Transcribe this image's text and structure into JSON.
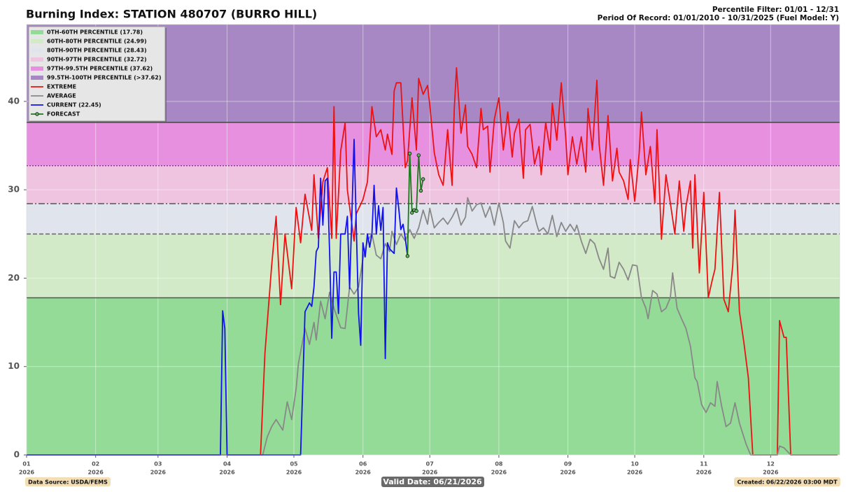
{
  "chart_data": {
    "type": "line",
    "title": "Burning Index: STATION 480707 (BURRO HILL)",
    "subtitle_lines": [
      "Percentile Filter: 01/01 - 12/31",
      "Period Of Record: 01/01/2010 - 10/31/2025 (Fuel Model: Y)"
    ],
    "footer": {
      "source": "Data Source: USDA/FEMS",
      "valid": "Valid Date: 06/21/2026",
      "created": "Created: 06/22/2026 03:00 MDT"
    },
    "xlim": [
      0,
      365
    ],
    "xticks": [
      {
        "value": 0,
        "label": "01"
      },
      {
        "value": 31,
        "label": "02"
      },
      {
        "value": 59,
        "label": "03"
      },
      {
        "value": 90,
        "label": "04"
      },
      {
        "value": 120,
        "label": "05"
      },
      {
        "value": 151,
        "label": "06"
      },
      {
        "value": 181,
        "label": "07"
      },
      {
        "value": 212,
        "label": "08"
      },
      {
        "value": 243,
        "label": "09"
      },
      {
        "value": 273,
        "label": "10"
      },
      {
        "value": 304,
        "label": "11"
      },
      {
        "value": 334,
        "label": "12"
      }
    ],
    "x_sublabel": "2026",
    "ylim": [
      0,
      48.7
    ],
    "yticks": [
      0,
      10,
      20,
      30,
      40
    ],
    "grid": true,
    "legend": "upper-left",
    "bands": [
      {
        "name": "0TH-60TH PERCENTILE (17.78)",
        "color": "#95db98",
        "upper": 17.78,
        "line_style": "solid",
        "line_color": "#555555"
      },
      {
        "name": "60TH-80TH PERCENTILE (24.99)",
        "color": "#d3eac8",
        "upper": 24.99,
        "line_style": "dashed",
        "line_color": "#666666"
      },
      {
        "name": "80TH-90TH PERCENTILE (28.43)",
        "color": "#e0e4ec",
        "upper": 28.43,
        "line_style": "dashdot",
        "line_color": "#555555"
      },
      {
        "name": "90TH-97TH PERCENTILE (32.72)",
        "color": "#eec4e0",
        "upper": 32.72,
        "line_style": "dotted",
        "line_color": "#8a3d8a"
      },
      {
        "name": "97TH-99.5TH PERCENTILE (37.62)",
        "color": "#e890e0",
        "upper": 37.62,
        "line_style": "solid",
        "line_color": "#444444"
      },
      {
        "name": "99.5TH-100TH PERCENTILE (>37.62)",
        "color": "#a888c4",
        "upper": 48.7,
        "line_style": "none",
        "line_color": "#444444"
      }
    ],
    "series": [
      {
        "name": "EXTREME",
        "color": "#ee1111",
        "marker": false,
        "x": [
          0,
          105,
          107,
          110,
          112,
          114,
          116,
          119,
          121,
          123,
          125,
          128,
          129,
          131,
          133,
          135,
          137,
          138,
          139,
          141,
          143,
          144,
          147,
          148,
          151,
          153,
          155,
          157,
          159,
          161,
          162,
          164,
          165,
          166,
          168,
          170,
          171,
          173,
          175,
          176,
          178,
          180,
          181,
          183,
          185,
          187,
          189,
          191,
          192,
          193,
          195,
          197,
          198,
          200,
          202,
          204,
          205,
          207,
          208,
          210,
          212,
          214,
          216,
          218,
          219,
          221,
          223,
          224,
          226,
          228,
          230,
          231,
          233,
          235,
          236,
          238,
          240,
          242,
          243,
          245,
          247,
          249,
          251,
          252,
          254,
          256,
          257,
          259,
          261,
          263,
          265,
          266,
          268,
          270,
          271,
          273,
          275,
          276,
          278,
          280,
          282,
          283,
          285,
          287,
          289,
          291,
          293,
          295,
          296,
          298,
          299,
          300,
          302,
          304,
          306,
          308,
          309,
          311,
          313,
          315,
          317,
          318,
          320,
          322,
          324,
          326,
          337,
          338,
          340,
          341,
          343,
          364
        ],
        "values": [
          0,
          0,
          11.5,
          21.4,
          27,
          17,
          25,
          18.8,
          28,
          24,
          29.5,
          25.4,
          31.7,
          24.5,
          30.9,
          32.5,
          24.5,
          39.4,
          24.5,
          34.4,
          37.6,
          30,
          24.2,
          27.3,
          28.9,
          30.9,
          39.4,
          36,
          36.8,
          34.5,
          36.3,
          34,
          41.2,
          42.1,
          42.1,
          32.5,
          33.3,
          40.4,
          34.5,
          42.6,
          40.8,
          41.8,
          39.6,
          34.2,
          31.7,
          30.5,
          36.8,
          30.5,
          39.2,
          43.8,
          36.4,
          39.6,
          34.9,
          34,
          32.5,
          39.2,
          36.8,
          37.2,
          32,
          38,
          40.4,
          34.5,
          38.8,
          33.7,
          36.4,
          38,
          31.3,
          36.8,
          37.4,
          32.9,
          34.9,
          31.7,
          37.6,
          34.5,
          39.8,
          35.6,
          42.1,
          36,
          31.7,
          36,
          32.9,
          36,
          32,
          39.2,
          34.5,
          42.4,
          35.2,
          30.5,
          38.4,
          31,
          34.7,
          32,
          31,
          28.9,
          33.4,
          28.7,
          34.2,
          38.8,
          31.7,
          34.9,
          28.5,
          36.8,
          24.4,
          31.7,
          28.5,
          25,
          31,
          25.3,
          28.1,
          31,
          23.4,
          31.7,
          20.6,
          29.7,
          17.8,
          20,
          21,
          29.7,
          17.6,
          16.2,
          21.5,
          27.7,
          16.2,
          12.7,
          8.7,
          0,
          0,
          15.2,
          13.3,
          13.3,
          0,
          0
        ]
      },
      {
        "name": "AVERAGE",
        "color": "#888888",
        "marker": false,
        "x": [
          0,
          106,
          108,
          110,
          112,
          115,
          117,
          119,
          121,
          122,
          125,
          127,
          129,
          130,
          132,
          134,
          136,
          138,
          141,
          143,
          145,
          147,
          149,
          151,
          153,
          155,
          157,
          159,
          161,
          163,
          164,
          166,
          168,
          170,
          172,
          174,
          176,
          178,
          180,
          181,
          183,
          185,
          187,
          189,
          191,
          193,
          195,
          197,
          198,
          200,
          202,
          204,
          206,
          208,
          210,
          212,
          214,
          215,
          217,
          219,
          221,
          223,
          225,
          227,
          229,
          230,
          232,
          234,
          236,
          238,
          240,
          242,
          244,
          246,
          247,
          249,
          251,
          253,
          255,
          257,
          259,
          261,
          262,
          264,
          266,
          268,
          270,
          272,
          274,
          276,
          278,
          279,
          281,
          283,
          285,
          287,
          289,
          290,
          292,
          294,
          296,
          298,
          300,
          301,
          303,
          305,
          307,
          309,
          310,
          312,
          314,
          316,
          318,
          320,
          322,
          323,
          325,
          337,
          338,
          340,
          343,
          364
        ],
        "values": [
          0,
          0,
          2,
          3.2,
          4,
          2.8,
          6,
          4,
          7.5,
          10.3,
          14.3,
          12.5,
          15,
          13,
          17.4,
          15.4,
          18.4,
          16.6,
          14.4,
          14.3,
          19,
          18.2,
          19,
          22.2,
          24.2,
          25,
          22.6,
          22.2,
          23.9,
          23,
          25.3,
          23.8,
          25,
          24.2,
          25.5,
          24.5,
          25.7,
          27.7,
          26.1,
          27.9,
          25.7,
          26.3,
          26.8,
          26.1,
          26.9,
          27.9,
          26,
          26.9,
          29.1,
          27.6,
          28.3,
          28.5,
          26.9,
          28.1,
          26,
          28.5,
          26.3,
          24.2,
          23.4,
          26.5,
          25.7,
          26.3,
          26.5,
          28.1,
          26.1,
          25.3,
          25.7,
          25,
          27.1,
          24.7,
          26.3,
          25.3,
          26.1,
          25.3,
          26,
          24.2,
          22.8,
          24.4,
          23.9,
          22.2,
          21,
          23.4,
          20.2,
          20,
          21.8,
          21,
          19.8,
          21.5,
          21.4,
          17.8,
          16.6,
          15.4,
          18.6,
          18.2,
          16.2,
          16.6,
          17.8,
          20.6,
          16.6,
          15.4,
          14.3,
          12.3,
          8.7,
          8.3,
          5.7,
          4.8,
          5.9,
          5.5,
          8.3,
          5.5,
          3.2,
          3.6,
          5.9,
          3.6,
          2,
          1.2,
          0,
          0,
          1,
          0.8,
          0,
          0
        ]
      },
      {
        "name": "CURRENT (22.45)",
        "color": "#1111ee",
        "marker": false,
        "x": [
          0,
          87,
          88,
          89,
          90,
          123,
          125,
          127,
          128,
          129,
          130,
          131,
          132,
          133,
          134,
          135,
          136,
          137,
          138,
          139,
          140,
          141,
          143,
          144,
          145,
          146,
          147,
          148,
          149,
          150,
          151,
          152,
          153,
          154,
          155,
          156,
          157,
          158,
          159,
          160,
          161,
          162,
          163,
          165,
          166,
          167,
          168,
          169,
          170,
          171
        ],
        "values": [
          0,
          0,
          16.3,
          14.3,
          0,
          0,
          16.2,
          17.2,
          16.8,
          19,
          23,
          23.5,
          31.3,
          26,
          31,
          31.3,
          23,
          13.2,
          20.7,
          20.7,
          16,
          25,
          25,
          27,
          18.8,
          27,
          35.7,
          25.7,
          16,
          12.4,
          24,
          22.4,
          25,
          23.5,
          25,
          30.5,
          25,
          28.2,
          25.4,
          28,
          10.9,
          24,
          23.3,
          22.8,
          30.2,
          28,
          25.5,
          26.1,
          24.5,
          22.5
        ]
      },
      {
        "name": "FORECAST",
        "color": "#1a7a1a",
        "marker": true,
        "x": [
          171,
          172,
          173,
          174,
          175,
          176,
          177,
          178
        ],
        "values": [
          22.5,
          34.1,
          27.4,
          27.7,
          27.6,
          33.9,
          29.9,
          31.2
        ]
      }
    ]
  }
}
